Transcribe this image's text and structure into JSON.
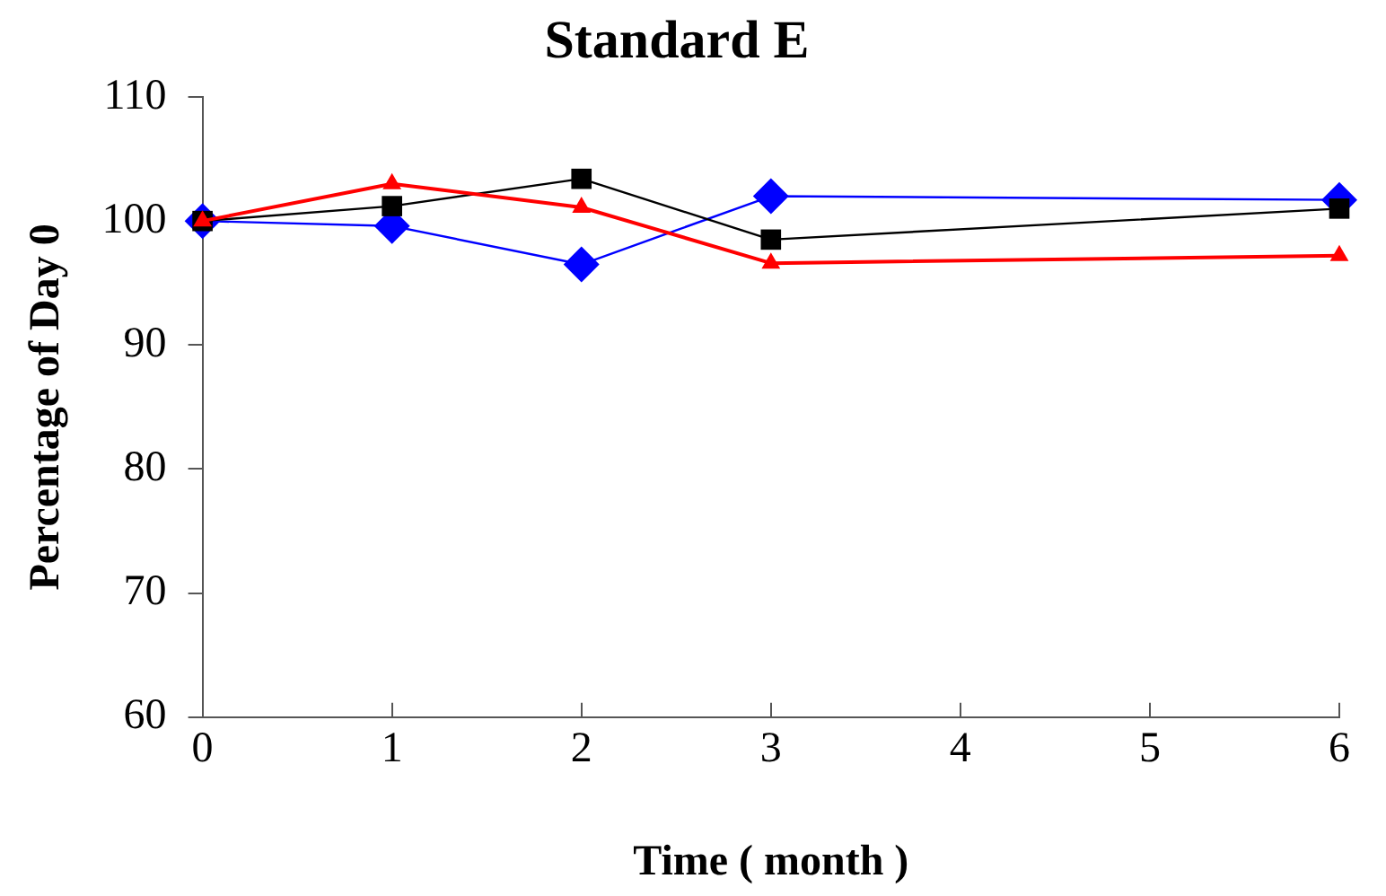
{
  "chart_data": {
    "type": "line",
    "title": "Standard E",
    "xlabel": "Time ( month )",
    "ylabel": "Percentage of Day 0",
    "x": [
      0,
      1,
      2,
      3,
      6
    ],
    "series": [
      {
        "color": "#0000ff",
        "marker": "diamond",
        "values": [
          100,
          99.6,
          96.5,
          102,
          101.7
        ]
      },
      {
        "color": "#000000",
        "marker": "square",
        "values": [
          100,
          101.2,
          103.4,
          98.5,
          101
        ]
      },
      {
        "color": "#ff0000",
        "marker": "triangle",
        "values": [
          100,
          103,
          101.1,
          96.6,
          97.2
        ]
      }
    ],
    "xlim": [
      0,
      6
    ],
    "xticks": [
      0,
      1,
      2,
      3,
      4,
      5,
      6
    ],
    "ylim": [
      60,
      110
    ],
    "yticks": [
      60,
      70,
      80,
      90,
      100,
      110
    ],
    "grid": false,
    "legend": false
  }
}
